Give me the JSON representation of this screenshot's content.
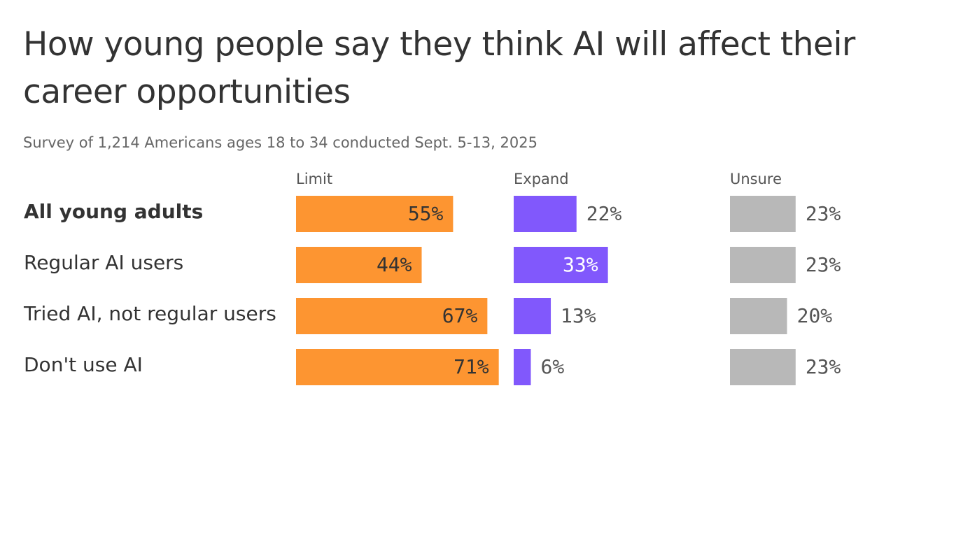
{
  "chart_data": {
    "type": "bar",
    "title": "How young people say they think AI will affect their career opportunities",
    "subtitle": "Survey of 1,214 Americans ages 18 to 34 conducted Sept. 5-13, 2025",
    "categories": [
      "All young adults",
      "Regular AI users",
      "Tried AI, not regular users",
      "Don't use AI"
    ],
    "series": [
      {
        "name": "Limit",
        "color": "#fd9531",
        "values": [
          55,
          44,
          67,
          71
        ],
        "value_labels": [
          "55%",
          "44%",
          "67%",
          "71%"
        ]
      },
      {
        "name": "Expand",
        "color": "#8158fc",
        "values": [
          22,
          33,
          13,
          6
        ],
        "value_labels": [
          "22%",
          "33%",
          "13%",
          "6%"
        ]
      },
      {
        "name": "Unsure",
        "color": "#b8b8b8",
        "values": [
          23,
          23,
          20,
          23
        ],
        "value_labels": [
          "23%",
          "23%",
          "20%",
          "23%"
        ]
      }
    ]
  }
}
